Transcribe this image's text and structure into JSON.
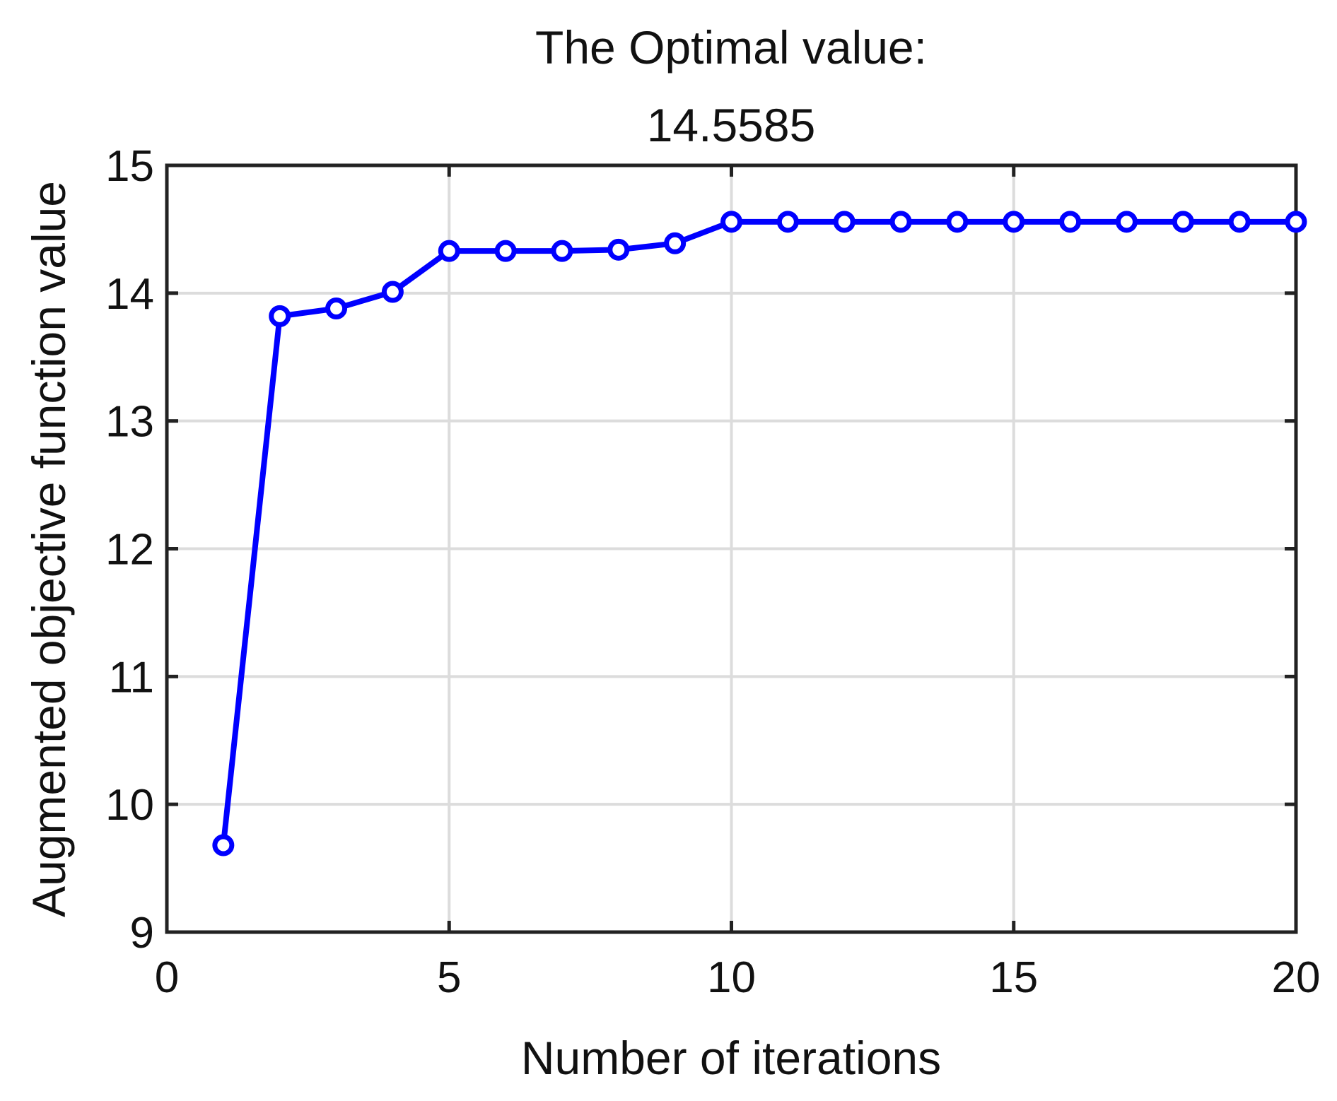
{
  "chart_data": {
    "type": "line",
    "title": [
      "The Optimal value:",
      "14.5585"
    ],
    "xlabel": "Number of iterations",
    "ylabel": "Augmented objective function value",
    "xlim": [
      0,
      20
    ],
    "ylim": [
      9,
      15
    ],
    "xticks": [
      0,
      5,
      10,
      15,
      20
    ],
    "yticks": [
      9,
      10,
      11,
      12,
      13,
      14,
      15
    ],
    "grid": true,
    "marker": "circle",
    "color": "#0000ff",
    "series": [
      {
        "x": [
          1,
          2,
          3,
          4,
          5,
          6,
          7,
          8,
          9,
          10,
          11,
          12,
          13,
          14,
          15,
          16,
          17,
          18,
          19,
          20
        ],
        "y": [
          9.68,
          13.82,
          13.88,
          14.01,
          14.33,
          14.33,
          14.33,
          14.34,
          14.39,
          14.5585,
          14.5585,
          14.5585,
          14.5585,
          14.5585,
          14.5585,
          14.5585,
          14.5585,
          14.5585,
          14.5585,
          14.5585
        ]
      }
    ]
  }
}
